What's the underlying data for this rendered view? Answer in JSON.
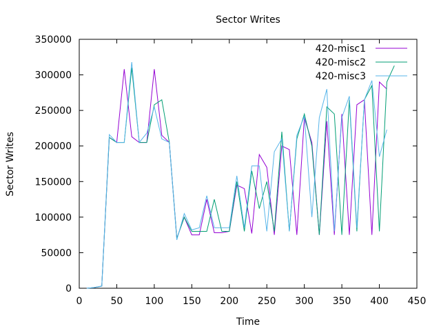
{
  "chart_data": {
    "type": "line",
    "title": "Sector Writes",
    "xlabel": "Time",
    "ylabel": "Sector Writes",
    "xlim": [
      0,
      450
    ],
    "ylim": [
      0,
      350000
    ],
    "xticks": [
      0,
      50,
      100,
      150,
      200,
      250,
      300,
      350,
      400,
      450
    ],
    "yticks": [
      0,
      50000,
      100000,
      150000,
      200000,
      250000,
      300000,
      350000
    ],
    "grid": false,
    "legend_position": "top-right",
    "series": [
      {
        "name": "420-misc1",
        "color": "#9400d3",
        "points": [
          [
            10,
            0
          ],
          [
            20,
            1000
          ],
          [
            30,
            3000
          ],
          [
            40,
            212000
          ],
          [
            50,
            205000
          ],
          [
            60,
            308000
          ],
          [
            70,
            213000
          ],
          [
            80,
            205000
          ],
          [
            90,
            205000
          ],
          [
            100,
            308000
          ],
          [
            110,
            215000
          ],
          [
            120,
            205000
          ],
          [
            130,
            70000
          ],
          [
            140,
            100000
          ],
          [
            150,
            75000
          ],
          [
            160,
            75000
          ],
          [
            170,
            125000
          ],
          [
            180,
            78000
          ],
          [
            190,
            78000
          ],
          [
            200,
            80000
          ],
          [
            210,
            145000
          ],
          [
            220,
            140000
          ],
          [
            230,
            77000
          ],
          [
            240,
            188000
          ],
          [
            250,
            170000
          ],
          [
            260,
            75000
          ],
          [
            270,
            200000
          ],
          [
            280,
            195000
          ],
          [
            290,
            75000
          ],
          [
            300,
            240000
          ],
          [
            310,
            205000
          ],
          [
            320,
            75000
          ],
          [
            330,
            235000
          ],
          [
            340,
            75000
          ],
          [
            350,
            245000
          ],
          [
            360,
            75000
          ],
          [
            370,
            258000
          ],
          [
            380,
            265000
          ],
          [
            390,
            75000
          ],
          [
            400,
            290000
          ],
          [
            410,
            280000
          ]
        ]
      },
      {
        "name": "420-misc2",
        "color": "#009e73",
        "points": [
          [
            10,
            0
          ],
          [
            20,
            1000
          ],
          [
            30,
            3000
          ],
          [
            40,
            212000
          ],
          [
            50,
            205000
          ],
          [
            60,
            205000
          ],
          [
            70,
            310000
          ],
          [
            80,
            205000
          ],
          [
            90,
            205000
          ],
          [
            100,
            258000
          ],
          [
            110,
            265000
          ],
          [
            120,
            205000
          ],
          [
            130,
            70000
          ],
          [
            140,
            100000
          ],
          [
            150,
            80000
          ],
          [
            160,
            80000
          ],
          [
            170,
            80000
          ],
          [
            180,
            125000
          ],
          [
            190,
            80000
          ],
          [
            200,
            80000
          ],
          [
            210,
            150000
          ],
          [
            220,
            80000
          ],
          [
            230,
            165000
          ],
          [
            240,
            112000
          ],
          [
            250,
            150000
          ],
          [
            260,
            80000
          ],
          [
            270,
            220000
          ],
          [
            280,
            80000
          ],
          [
            290,
            210000
          ],
          [
            300,
            245000
          ],
          [
            310,
            200000
          ],
          [
            320,
            75000
          ],
          [
            330,
            255000
          ],
          [
            340,
            245000
          ],
          [
            350,
            75000
          ],
          [
            360,
            265000
          ],
          [
            370,
            80000
          ],
          [
            380,
            265000
          ],
          [
            390,
            285000
          ],
          [
            400,
            80000
          ],
          [
            410,
            290000
          ],
          [
            420,
            313000
          ]
        ]
      },
      {
        "name": "420-misc3",
        "color": "#56b4e9",
        "points": [
          [
            10,
            0
          ],
          [
            20,
            1000
          ],
          [
            30,
            3000
          ],
          [
            40,
            216000
          ],
          [
            50,
            205000
          ],
          [
            60,
            205000
          ],
          [
            70,
            318000
          ],
          [
            80,
            205000
          ],
          [
            90,
            218000
          ],
          [
            100,
            255000
          ],
          [
            110,
            210000
          ],
          [
            120,
            205000
          ],
          [
            130,
            68000
          ],
          [
            140,
            105000
          ],
          [
            150,
            82000
          ],
          [
            160,
            85000
          ],
          [
            170,
            130000
          ],
          [
            180,
            85000
          ],
          [
            190,
            85000
          ],
          [
            200,
            85000
          ],
          [
            210,
            158000
          ],
          [
            220,
            85000
          ],
          [
            230,
            172000
          ],
          [
            240,
            172000
          ],
          [
            250,
            80000
          ],
          [
            260,
            192000
          ],
          [
            270,
            210000
          ],
          [
            280,
            80000
          ],
          [
            290,
            215000
          ],
          [
            300,
            242000
          ],
          [
            310,
            100000
          ],
          [
            320,
            240000
          ],
          [
            330,
            280000
          ],
          [
            340,
            80000
          ],
          [
            350,
            240000
          ],
          [
            360,
            270000
          ],
          [
            370,
            85000
          ],
          [
            380,
            265000
          ],
          [
            390,
            292000
          ],
          [
            400,
            185000
          ],
          [
            410,
            223000
          ]
        ]
      }
    ]
  }
}
